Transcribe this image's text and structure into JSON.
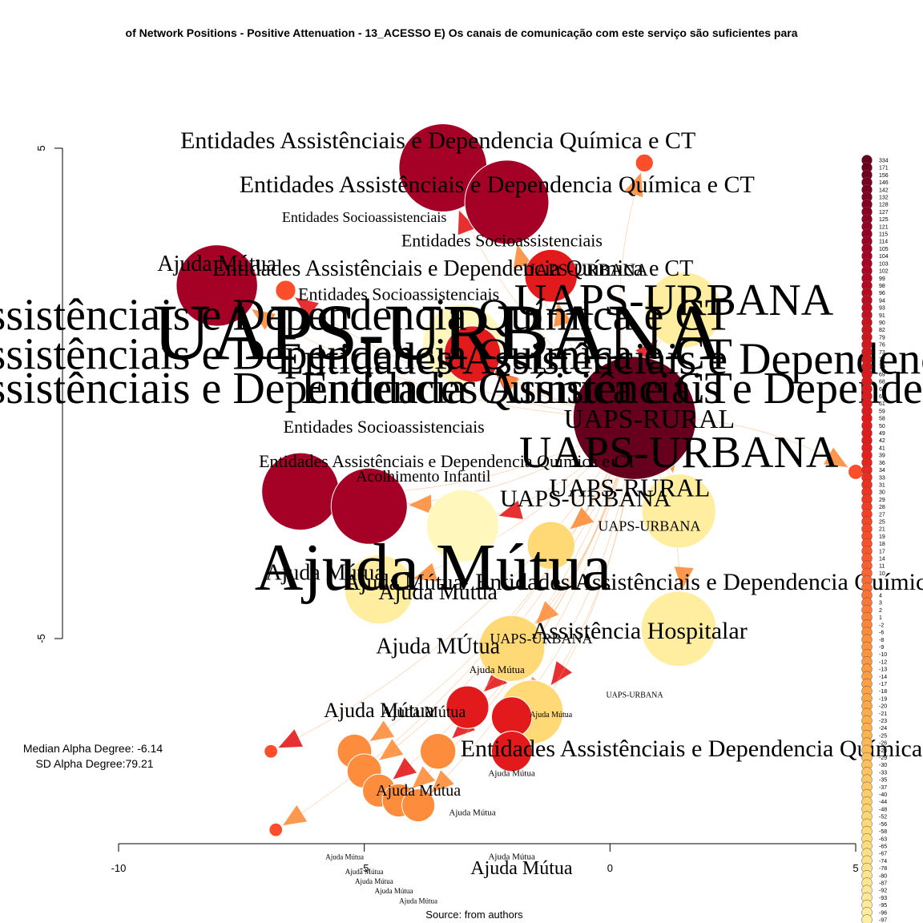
{
  "chart_data": {
    "type": "network",
    "title": "of Network Positions - Positive Attenuation - 13_ACESSO E) Os canais de comunicação com este serviço são suficientes para",
    "source": "Source: from authors",
    "stats": {
      "median": "Median Alpha Degree: -6.14",
      "sd": "SD Alpha Degree:79.21"
    },
    "x_axis": {
      "ticks": [
        -10,
        -5,
        0,
        5
      ],
      "range": [
        -10,
        5
      ]
    },
    "y_axis": {
      "ticks": [
        5,
        -5
      ],
      "range": [
        -5,
        5
      ]
    },
    "legend_values": [
      "334",
      "171",
      "156",
      "146",
      "142",
      "132",
      "128",
      "127",
      "125",
      "121",
      "115",
      "114",
      "105",
      "104",
      "103",
      "102",
      "99",
      "98",
      "96",
      "94",
      "93",
      "91",
      "90",
      "82",
      "79",
      "76",
      "73",
      "72",
      "70",
      "69",
      "68",
      "64",
      "62",
      "61",
      "59",
      "58",
      "50",
      "49",
      "42",
      "41",
      "39",
      "36",
      "34",
      "33",
      "31",
      "30",
      "29",
      "28",
      "27",
      "25",
      "21",
      "19",
      "18",
      "17",
      "14",
      "11",
      "10",
      "9",
      "6",
      "4",
      "3",
      "2",
      "1",
      "-2",
      "-6",
      "-8",
      "-9",
      "-10",
      "-12",
      "-13",
      "-14",
      "-17",
      "-18",
      "-19",
      "-20",
      "-21",
      "-23",
      "-24",
      "-25",
      "-26",
      "-28",
      "-29",
      "-30",
      "-33",
      "-35",
      "-37",
      "-40",
      "-44",
      "-48",
      "-52",
      "-56",
      "-58",
      "-63",
      "-65",
      "-67",
      "-74",
      "-78",
      "-80",
      "-87",
      "-92",
      "-93",
      "-95",
      "-96",
      "-97"
    ],
    "nodes": [
      {
        "x": 0.5,
        "y": -0.5,
        "size": 334,
        "color": "#67001f",
        "label": "UAPS-URBANA"
      },
      {
        "x": -3.4,
        "y": 4.6,
        "size": 171,
        "color": "#a50026",
        "label": "Entidades Assistênciais e Dependencia Química e CT"
      },
      {
        "x": -2.1,
        "y": 3.9,
        "size": 156,
        "color": "#a50026",
        "label": "Entidades Assistênciais e Dependencia Química e CT"
      },
      {
        "x": -8.0,
        "y": 2.2,
        "size": 146,
        "color": "#a50026",
        "label": "Ajuda Mútua"
      },
      {
        "x": -3.0,
        "y": 1.0,
        "size": 142,
        "color": "#fff7bc",
        "label": "Entidades Socioassistenciais"
      },
      {
        "x": -6.3,
        "y": -2.0,
        "size": 132,
        "color": "#a50026",
        "label": "Ajuda Mútua"
      },
      {
        "x": -4.9,
        "y": -2.3,
        "size": 128,
        "color": "#a50026",
        "label": "Ajuda Mútua"
      },
      {
        "x": 1.5,
        "y": 1.7,
        "size": 127,
        "color": "#ffeda0",
        "label": "Entidades Assistênciais e Dependencia Química e CT"
      },
      {
        "x": 1.4,
        "y": -4.8,
        "size": 125,
        "color": "#ffeda0",
        "label": "Entidades Assistênciais e Dependencia Química e CT"
      },
      {
        "x": 1.4,
        "y": -2.4,
        "size": 121,
        "color": "#ffeda0",
        "label": "Assistência Hospitalar"
      },
      {
        "x": -3.0,
        "y": -2.7,
        "size": 115,
        "color": "#fff7bc",
        "label": "Ajuda MÚtua"
      },
      {
        "x": -4.7,
        "y": -4.0,
        "size": 105,
        "color": "#ffeda0",
        "label": "Ajuda Mútua"
      },
      {
        "x": -2.0,
        "y": -5.2,
        "size": 96,
        "color": "#fed976",
        "label": "Ajuda Mútua"
      },
      {
        "x": -1.6,
        "y": -6.5,
        "size": 90,
        "color": "#fed976",
        "label": "Ajuda Mútua"
      },
      {
        "x": -2.8,
        "y": 0.8,
        "size": 70,
        "color": "#e31a1c",
        "label": "Entidades Socioassistenciais"
      },
      {
        "x": -1.2,
        "y": 2.4,
        "size": 61,
        "color": "#e31a1c",
        "label": "UAPS-URBANA"
      },
      {
        "x": -2.9,
        "y": -6.4,
        "size": 40,
        "color": "#e31a1c",
        "label": "Ajuda Mútua"
      },
      {
        "x": -2.0,
        "y": -6.6,
        "size": 36,
        "color": "#e31a1c",
        "label": "Ajuda Mútua"
      },
      {
        "x": -2.0,
        "y": -7.3,
        "size": 36,
        "color": "#e31a1c",
        "label": "Ajuda Mútua"
      },
      {
        "x": -3.5,
        "y": -7.3,
        "size": 28,
        "color": "#fd8d3c",
        "label": "Ajuda Mútua"
      },
      {
        "x": -5.2,
        "y": -7.3,
        "size": 26,
        "color": "#fd8d3c",
        "label": "Ajuda Mútua"
      },
      {
        "x": -5.0,
        "y": -7.7,
        "size": 26,
        "color": "#fd8d3c",
        "label": "Ajuda Mútua"
      },
      {
        "x": -4.7,
        "y": -8.1,
        "size": 24,
        "color": "#fd8d3c",
        "label": "Ajuda Mútua"
      },
      {
        "x": -4.3,
        "y": -8.3,
        "size": 24,
        "color": "#fd8d3c",
        "label": "Ajuda Mútua"
      },
      {
        "x": -3.9,
        "y": -8.4,
        "size": 24,
        "color": "#fd8d3c",
        "label": "Ajuda Mútua"
      },
      {
        "x": -6.6,
        "y": 2.1,
        "size": 9,
        "color": "#fc4e2a",
        "label": "Ajuda Mútua"
      },
      {
        "x": 0.7,
        "y": 4.7,
        "size": 7,
        "color": "#fc4e2a",
        "label": ""
      },
      {
        "x": 5.0,
        "y": -1.6,
        "size": 5,
        "color": "#fc4e2a",
        "label": ""
      },
      {
        "x": -6.9,
        "y": -7.3,
        "size": 4,
        "color": "#fc4e2a",
        "label": ""
      },
      {
        "x": -6.8,
        "y": -8.9,
        "size": 4,
        "color": "#fc4e2a",
        "label": ""
      },
      {
        "x": -1.2,
        "y": -3.1,
        "size": 50,
        "color": "#fed976",
        "label": "UAPS-URBANA"
      }
    ],
    "labels": [
      {
        "text": "Entidades Assistênciais e Dependencia Química e CT",
        "x": -3.5,
        "y": 5.0,
        "size": 30
      },
      {
        "text": "Entidades Assistênciais e Dependencia Química e CT",
        "x": -2.3,
        "y": 4.1,
        "size": 30
      },
      {
        "text": "Entidades Socioassistenciais",
        "x": -5.0,
        "y": 3.5,
        "size": 18
      },
      {
        "text": "Entidades Socioassistenciais",
        "x": -2.2,
        "y": 3.0,
        "size": 22
      },
      {
        "text": "Ajuda Mútua",
        "x": -8.0,
        "y": 2.5,
        "size": 28
      },
      {
        "text": "Entidades Assistênciais e Dependencia Química e CT",
        "x": -3.2,
        "y": 2.4,
        "size": 28
      },
      {
        "text": "UAPS-URBANA",
        "x": -0.5,
        "y": 2.4,
        "size": 22
      },
      {
        "text": "Entidades Socioassistenciais",
        "x": -4.3,
        "y": 1.9,
        "size": 22
      },
      {
        "text": "Entidades Assistênciais e Dependencia Química e CT",
        "x": -7.3,
        "y": 1.3,
        "size": 56
      },
      {
        "text": "UAPS-URBANA",
        "x": 1.3,
        "y": 1.6,
        "size": 56
      },
      {
        "text": "UAPS-URBANA",
        "x": -3.5,
        "y": 0.7,
        "size": 100
      },
      {
        "text": "Entidades Assistênciais e Dependencia Química e CT",
        "x": -7.3,
        "y": 0.5,
        "size": 56
      },
      {
        "text": "Entidades Assistênciais e Dependencia Química e CT",
        "x": -7.3,
        "y": -0.2,
        "size": 56
      },
      {
        "text": "Entidades Assistênciais e Dependencia Química e CT",
        "x": 3.0,
        "y": 0.4,
        "size": 56
      },
      {
        "text": "Entidades Assistênciais e Dependencia Química e CT",
        "x": 3.5,
        "y": -0.2,
        "size": 56
      },
      {
        "text": "UAPS-RURAL",
        "x": 0.8,
        "y": -0.7,
        "size": 34
      },
      {
        "text": "UAPS-URBANA",
        "x": 1.4,
        "y": -1.5,
        "size": 56
      },
      {
        "text": "Entidades Socioassistenciais",
        "x": -4.6,
        "y": -0.8,
        "size": 22
      },
      {
        "text": "Entidades Assistênciais e Dependencia Química e CT",
        "x": -3.3,
        "y": -1.5,
        "size": 22
      },
      {
        "text": "Acolhimento Infantil",
        "x": -3.8,
        "y": -1.8,
        "size": 20
      },
      {
        "text": "UAPS-RURAL",
        "x": 0.4,
        "y": -2.1,
        "size": 32
      },
      {
        "text": "UAPS-URBANA",
        "x": -0.5,
        "y": -2.3,
        "size": 30
      },
      {
        "text": "UAPS-URBANA",
        "x": 0.8,
        "y": -2.8,
        "size": 18
      },
      {
        "text": "Ajuda Mútua",
        "x": -3.6,
        "y": -4.0,
        "size": 84
      },
      {
        "text": "Ajuda Mútua",
        "x": -5.8,
        "y": -3.8,
        "size": 28
      },
      {
        "text": "Ajuda Mútua",
        "x": -4.2,
        "y": -4.0,
        "size": 28
      },
      {
        "text": "Entidades Assistênciais e Dependencia Química e CT",
        "x": 2.5,
        "y": -4.0,
        "size": 30
      },
      {
        "text": "Ajuda Mútua",
        "x": -3.5,
        "y": -4.2,
        "size": 28
      },
      {
        "text": "Assistência Hospitalar",
        "x": 0.6,
        "y": -5.0,
        "size": 30
      },
      {
        "text": "UAPS-URBANA",
        "x": -1.4,
        "y": -5.1,
        "size": 18
      },
      {
        "text": "Ajuda MÚtua",
        "x": -3.5,
        "y": -5.3,
        "size": 28
      },
      {
        "text": "Ajuda Mútua",
        "x": -2.3,
        "y": -5.7,
        "size": 13
      },
      {
        "text": "UAPS-URBANA",
        "x": 0.5,
        "y": -6.2,
        "size": 10
      },
      {
        "text": "Ajuda Mútua",
        "x": -4.7,
        "y": -6.6,
        "size": 26
      },
      {
        "text": "Ajuda Mútua",
        "x": -3.8,
        "y": -6.6,
        "size": 20
      },
      {
        "text": "Ajuda Mútua",
        "x": -1.2,
        "y": -6.6,
        "size": 10
      },
      {
        "text": "Entidades Assistênciais e Dependencia Química e CT",
        "x": 2.2,
        "y": -7.4,
        "size": 30
      },
      {
        "text": "Ajuda Mútua",
        "x": -3.9,
        "y": -8.2,
        "size": 20
      },
      {
        "text": "Ajuda Mútua",
        "x": -2.0,
        "y": -7.8,
        "size": 11
      },
      {
        "text": "Ajuda Mútua",
        "x": -2.8,
        "y": -8.6,
        "size": 11
      },
      {
        "text": "Ajuda Mútua",
        "x": -2.0,
        "y": -9.5,
        "size": 11
      },
      {
        "text": "Ajuda Mútua",
        "x": -1.8,
        "y": -9.8,
        "size": 24
      },
      {
        "text": "Ajuda Mútua",
        "x": -5.4,
        "y": -9.5,
        "size": 9
      },
      {
        "text": "Ajuda Mútua",
        "x": -5.0,
        "y": -9.8,
        "size": 9
      },
      {
        "text": "Ajuda Mútua",
        "x": -4.8,
        "y": -10.0,
        "size": 9
      },
      {
        "text": "Ajuda Mútua",
        "x": -4.4,
        "y": -10.2,
        "size": 9
      },
      {
        "text": "Ajuda Mútua",
        "x": -3.9,
        "y": -10.4,
        "size": 9
      }
    ]
  }
}
